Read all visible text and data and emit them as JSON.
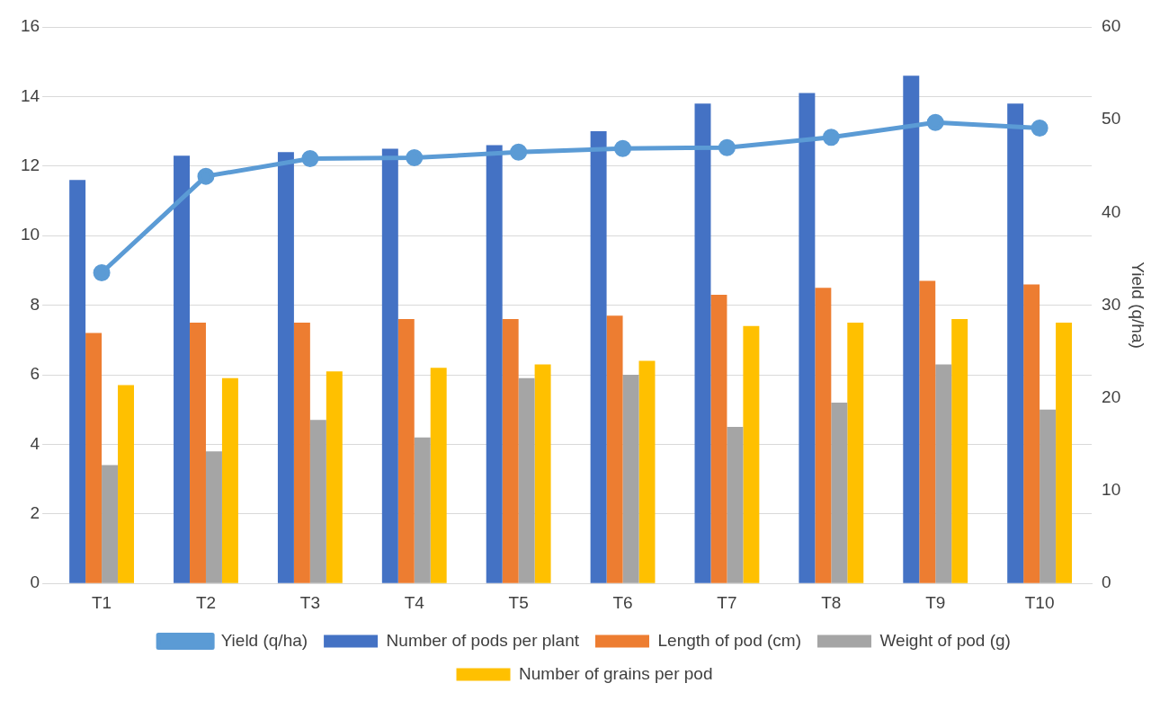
{
  "chart_data": {
    "type": "bar",
    "y2label": "Yield (q/ha)",
    "categories": [
      "T1",
      "T2",
      "T3",
      "T4",
      "T5",
      "T6",
      "T7",
      "T8",
      "T9",
      "T10"
    ],
    "series": [
      {
        "name": "Number of pods per plant",
        "color": "#4472c4",
        "values": [
          11.6,
          12.3,
          12.4,
          12.5,
          12.6,
          13.0,
          13.8,
          14.1,
          14.6,
          13.8
        ]
      },
      {
        "name": "Length of pod (cm)",
        "color": "#ed7d31",
        "values": [
          7.2,
          7.5,
          7.5,
          7.6,
          7.6,
          7.7,
          8.3,
          8.5,
          8.7,
          8.6
        ]
      },
      {
        "name": "Weight of pod (g)",
        "color": "#a5a5a5",
        "values": [
          3.4,
          3.8,
          4.7,
          4.2,
          5.9,
          6.0,
          4.5,
          5.2,
          6.3,
          5.0
        ]
      },
      {
        "name": "Number of grains per pod",
        "color": "#ffc000",
        "values": [
          5.7,
          5.9,
          6.1,
          6.2,
          6.3,
          6.4,
          7.4,
          7.5,
          7.6,
          7.5
        ]
      },
      {
        "name": "Yield (q/ha)",
        "type": "line",
        "axis": "y2",
        "color": "#5b9bd5",
        "values": [
          33.5,
          43.9,
          45.8,
          45.9,
          46.5,
          46.9,
          47.0,
          48.1,
          49.7,
          49.1
        ]
      }
    ],
    "ylim": [
      0,
      16
    ],
    "yticks": [
      0,
      2,
      4,
      6,
      8,
      10,
      12,
      14,
      16
    ],
    "y2lim": [
      0,
      60
    ],
    "y2ticks": [
      0,
      10,
      20,
      30,
      40,
      50,
      60
    ],
    "grid": "y",
    "legend": "bottom",
    "marker": "circle"
  }
}
